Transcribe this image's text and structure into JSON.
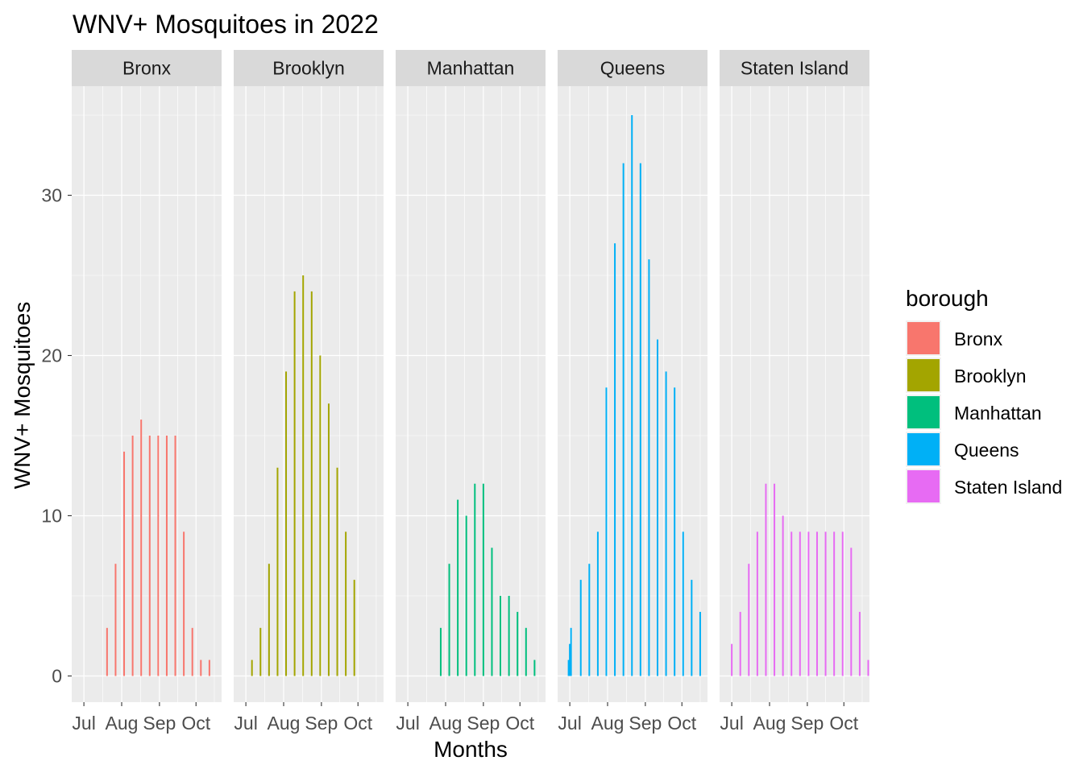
{
  "chart_data": {
    "type": "bar",
    "title": "WNV+ Mosquitoes in 2022",
    "xlabel": "Months",
    "ylabel": "WNV+ Mosquitoes",
    "ylim": [
      -1.8,
      36.7
    ],
    "xlim": [
      "2022-06-21",
      "2022-10-22"
    ],
    "y_ticks": [
      0,
      10,
      20,
      30
    ],
    "x_ticks": [
      {
        "label": "Jul",
        "date": "2022-07-01"
      },
      {
        "label": "Aug",
        "date": "2022-08-01"
      },
      {
        "label": "Sep",
        "date": "2022-09-01"
      },
      {
        "label": "Oct",
        "date": "2022-10-01"
      }
    ],
    "grid": true,
    "facet": "borough",
    "legend": {
      "title": "borough",
      "position": "right",
      "entries": [
        "Bronx",
        "Brooklyn",
        "Manhattan",
        "Queens",
        "Staten Island"
      ]
    },
    "series": [
      {
        "name": "Bronx",
        "color": "#F8766D",
        "points": [
          {
            "x": "2022-07-20",
            "y": 3
          },
          {
            "x": "2022-07-27",
            "y": 7
          },
          {
            "x": "2022-08-03",
            "y": 14
          },
          {
            "x": "2022-08-10",
            "y": 15
          },
          {
            "x": "2022-08-17",
            "y": 16
          },
          {
            "x": "2022-08-24",
            "y": 15
          },
          {
            "x": "2022-08-31",
            "y": 15
          },
          {
            "x": "2022-09-07",
            "y": 15
          },
          {
            "x": "2022-09-14",
            "y": 15
          },
          {
            "x": "2022-09-21",
            "y": 9
          },
          {
            "x": "2022-09-28",
            "y": 3
          },
          {
            "x": "2022-10-05",
            "y": 1
          },
          {
            "x": "2022-10-12",
            "y": 1
          }
        ]
      },
      {
        "name": "Brooklyn",
        "color": "#A3A500",
        "points": [
          {
            "x": "2022-07-06",
            "y": 1
          },
          {
            "x": "2022-07-13",
            "y": 3
          },
          {
            "x": "2022-07-20",
            "y": 7
          },
          {
            "x": "2022-07-27",
            "y": 13
          },
          {
            "x": "2022-08-03",
            "y": 19
          },
          {
            "x": "2022-08-10",
            "y": 24
          },
          {
            "x": "2022-08-17",
            "y": 25
          },
          {
            "x": "2022-08-24",
            "y": 24
          },
          {
            "x": "2022-08-31",
            "y": 20
          },
          {
            "x": "2022-09-07",
            "y": 17
          },
          {
            "x": "2022-09-14",
            "y": 13
          },
          {
            "x": "2022-09-21",
            "y": 9
          },
          {
            "x": "2022-09-28",
            "y": 6
          }
        ]
      },
      {
        "name": "Manhattan",
        "color": "#00BF7D",
        "points": [
          {
            "x": "2022-07-28",
            "y": 3
          },
          {
            "x": "2022-08-04",
            "y": 7
          },
          {
            "x": "2022-08-11",
            "y": 11
          },
          {
            "x": "2022-08-18",
            "y": 10
          },
          {
            "x": "2022-08-25",
            "y": 12
          },
          {
            "x": "2022-09-01",
            "y": 12
          },
          {
            "x": "2022-09-08",
            "y": 8
          },
          {
            "x": "2022-09-15",
            "y": 5
          },
          {
            "x": "2022-09-22",
            "y": 5
          },
          {
            "x": "2022-09-29",
            "y": 4
          },
          {
            "x": "2022-10-06",
            "y": 3
          },
          {
            "x": "2022-10-13",
            "y": 1
          }
        ]
      },
      {
        "name": "Queens",
        "color": "#00B0F6",
        "points": [
          {
            "x": "2022-06-30",
            "y": 1
          },
          {
            "x": "2022-07-01",
            "y": 2
          },
          {
            "x": "2022-07-02",
            "y": 3
          },
          {
            "x": "2022-07-10",
            "y": 6
          },
          {
            "x": "2022-07-17",
            "y": 7
          },
          {
            "x": "2022-07-24",
            "y": 9
          },
          {
            "x": "2022-07-31",
            "y": 18
          },
          {
            "x": "2022-08-07",
            "y": 27
          },
          {
            "x": "2022-08-14",
            "y": 32
          },
          {
            "x": "2022-08-21",
            "y": 35
          },
          {
            "x": "2022-08-28",
            "y": 32
          },
          {
            "x": "2022-09-04",
            "y": 26
          },
          {
            "x": "2022-09-11",
            "y": 21
          },
          {
            "x": "2022-09-18",
            "y": 19
          },
          {
            "x": "2022-09-25",
            "y": 18
          },
          {
            "x": "2022-10-02",
            "y": 9
          },
          {
            "x": "2022-10-09",
            "y": 6
          },
          {
            "x": "2022-10-16",
            "y": 4
          }
        ]
      },
      {
        "name": "Staten Island",
        "color": "#E76BF3",
        "points": [
          {
            "x": "2022-07-01",
            "y": 2
          },
          {
            "x": "2022-07-08",
            "y": 4
          },
          {
            "x": "2022-07-15",
            "y": 7
          },
          {
            "x": "2022-07-22",
            "y": 9
          },
          {
            "x": "2022-07-29",
            "y": 12
          },
          {
            "x": "2022-08-05",
            "y": 12
          },
          {
            "x": "2022-08-12",
            "y": 10
          },
          {
            "x": "2022-08-19",
            "y": 9
          },
          {
            "x": "2022-08-26",
            "y": 9
          },
          {
            "x": "2022-09-02",
            "y": 9
          },
          {
            "x": "2022-09-09",
            "y": 9
          },
          {
            "x": "2022-09-16",
            "y": 9
          },
          {
            "x": "2022-09-23",
            "y": 9
          },
          {
            "x": "2022-09-30",
            "y": 9
          },
          {
            "x": "2022-10-07",
            "y": 8
          },
          {
            "x": "2022-10-14",
            "y": 4
          },
          {
            "x": "2022-10-21",
            "y": 1
          }
        ]
      }
    ]
  }
}
